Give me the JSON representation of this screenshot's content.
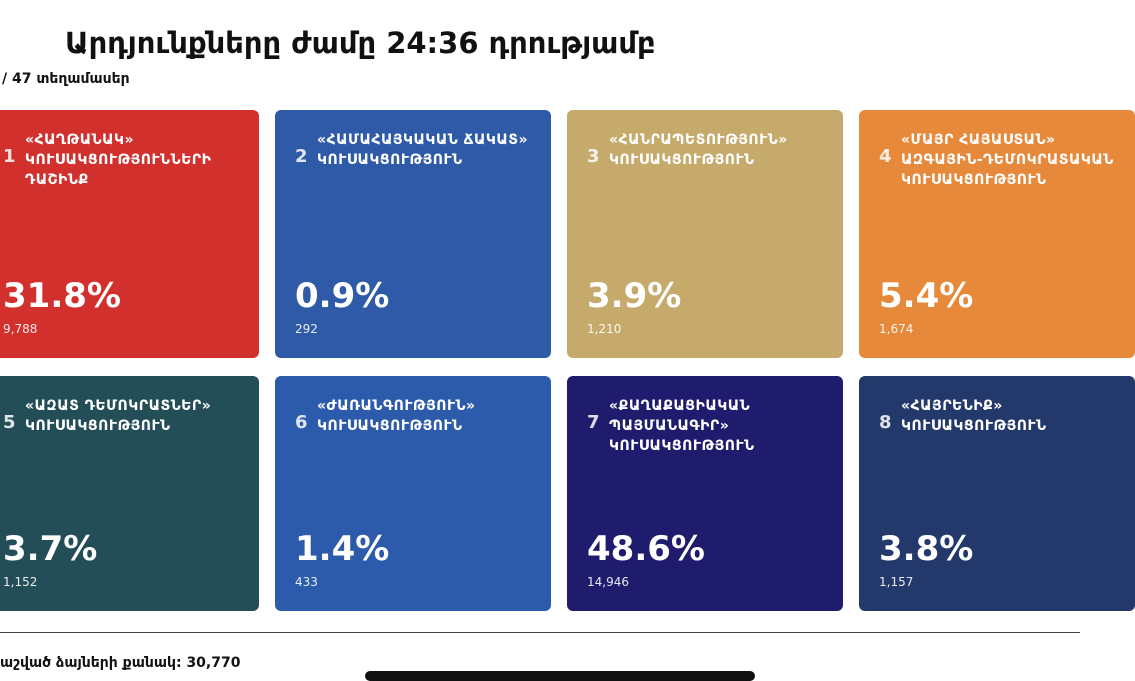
{
  "header": {
    "title": "Արդյունքները ժամը 24:36 դրությամբ",
    "subtitle": "/ 47 տեղամասեր"
  },
  "cards": [
    {
      "number": "1",
      "name": "«ՀԱՂԹԱՆԱԿ» ԿՈՒՍԱԿՑՈՒԹՅՈՒՆՆԵՐԻ ԴԱՇԻՆՔ",
      "percent": "31.8%",
      "votes": "9,788",
      "color": "#d1302c"
    },
    {
      "number": "2",
      "name": "«ՀԱՄԱՀԱՅԿԱԿԱՆ ՃԱԿԱՏ» ԿՈՒՍԱԿՑՈՒԹՅՈՒՆ",
      "percent": "0.9%",
      "votes": "292",
      "color": "#2f5aa8"
    },
    {
      "number": "3",
      "name": "«ՀԱՆՐԱՊԵՏՈՒԹՅՈՒՆ» ԿՈՒՍԱԿՑՈՒԹՅՈՒՆ",
      "percent": "3.9%",
      "votes": "1,210",
      "color": "#c6aa6b"
    },
    {
      "number": "4",
      "name": "«ՄԱՅՐ ՀԱՅԱՍՏԱՆ» ԱԶԳԱՅԻՆ-ԴԵՄՈԿՐԱՏԱԿԱՆ ԿՈՒՍԱԿՑՈՒԹՅՈՒՆ",
      "percent": "5.4%",
      "votes": "1,674",
      "color": "#e6893a"
    },
    {
      "number": "5",
      "name": "«ԱԶԱՏ ԴԵՄՈԿՐԱՏՆԵՐ» ԿՈՒՍԱԿՑՈՒԹՅՈՒՆ",
      "percent": "3.7%",
      "votes": "1,152",
      "color": "#244e57"
    },
    {
      "number": "6",
      "name": "«ԺԱՌԱՆԳՈՒԹՅՈՒՆ» ԿՈՒՍԱԿՑՈՒԹՅՈՒՆ",
      "percent": "1.4%",
      "votes": "433",
      "color": "#2c5bac"
    },
    {
      "number": "7",
      "name": "«ՔԱՂԱՔԱՑԻԱԿԱՆ ՊԱՅՄԱՆԱԳԻՐ» ԿՈՒՍԱԿՑՈՒԹՅՈՒՆ",
      "percent": "48.6%",
      "votes": "14,946",
      "color": "#1f1c6e"
    },
    {
      "number": "8",
      "name": "«ՀԱՅՐԵՆԻՔ» ԿՈՒՍԱԿՑՈՒԹՅՈՒՆ",
      "percent": "3.8%",
      "votes": "1,157",
      "color": "#24396b"
    }
  ],
  "footer": {
    "total": "աշված ձայների քանակ: 30,770"
  }
}
